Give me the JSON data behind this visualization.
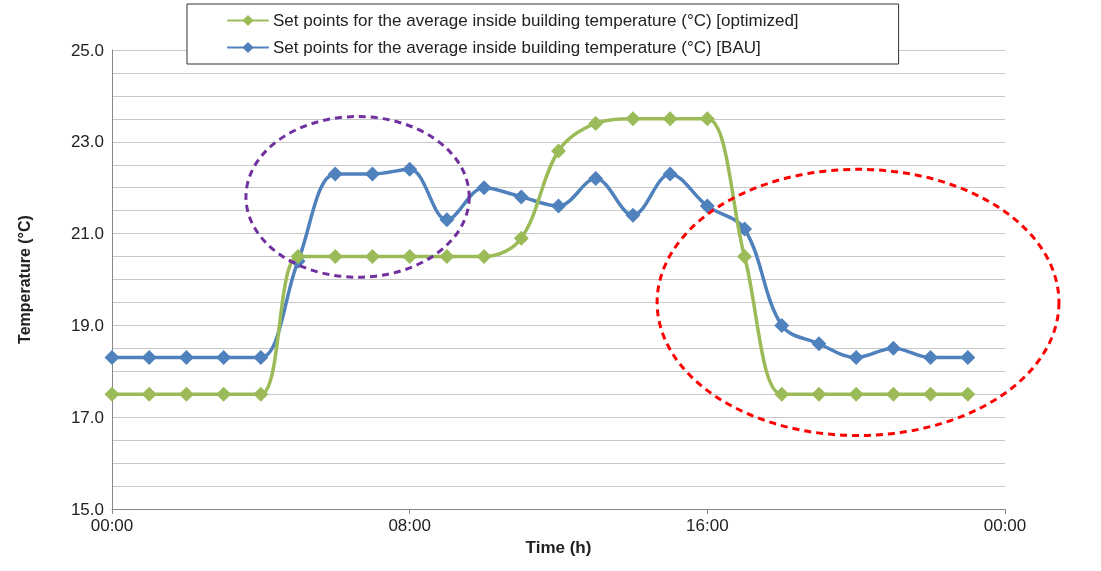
{
  "chart_data": {
    "type": "line",
    "xlabel": "Time (h)",
    "ylabel": "Temperature (°C)",
    "x": [
      0,
      1,
      2,
      3,
      4,
      5,
      6,
      7,
      8,
      9,
      10,
      11,
      12,
      13,
      14,
      15,
      16,
      17,
      18,
      19,
      20,
      21,
      22,
      23
    ],
    "xlim": [
      0,
      24
    ],
    "xticks": [
      {
        "value": 0,
        "label": "00:00"
      },
      {
        "value": 8,
        "label": "08:00"
      },
      {
        "value": 16,
        "label": "16:00"
      },
      {
        "value": 24,
        "label": "00:00"
      }
    ],
    "ylim": [
      15,
      25
    ],
    "yticks": [
      {
        "value": 15,
        "label": "15.0"
      },
      {
        "value": 15.5,
        "label": null
      },
      {
        "value": 16,
        "label": null
      },
      {
        "value": 16.5,
        "label": null
      },
      {
        "value": 17,
        "label": "17.0"
      },
      {
        "value": 17.5,
        "label": null
      },
      {
        "value": 18,
        "label": null
      },
      {
        "value": 18.5,
        "label": null
      },
      {
        "value": 19,
        "label": "19.0"
      },
      {
        "value": 19.5,
        "label": null
      },
      {
        "value": 20,
        "label": null
      },
      {
        "value": 20.5,
        "label": null
      },
      {
        "value": 21,
        "label": "21.0"
      },
      {
        "value": 21.5,
        "label": null
      },
      {
        "value": 22,
        "label": null
      },
      {
        "value": 22.5,
        "label": null
      },
      {
        "value": 23,
        "label": "23.0"
      },
      {
        "value": 23.5,
        "label": null
      },
      {
        "value": 24,
        "label": null
      },
      {
        "value": 24.5,
        "label": null
      },
      {
        "value": 25,
        "label": "25.0"
      }
    ],
    "grid": "y",
    "legend": "top",
    "marker": "diamond",
    "line_style": "solid",
    "series": [
      {
        "name": "Set points for the average inside building temperature (°C) [optimized]",
        "color": "#9bbb59",
        "values": [
          17.5,
          17.5,
          17.5,
          17.5,
          17.5,
          20.5,
          20.5,
          20.5,
          20.5,
          20.5,
          20.5,
          20.9,
          22.8,
          23.4,
          23.5,
          23.5,
          23.5,
          20.5,
          17.5,
          17.5,
          17.5,
          17.5,
          17.5,
          17.5
        ]
      },
      {
        "name": "Set points for the average inside building temperature (°C) [BAU]",
        "color": "#4f81bd",
        "values": [
          18.3,
          18.3,
          18.3,
          18.3,
          18.3,
          20.4,
          22.3,
          22.3,
          22.4,
          21.3,
          22.0,
          21.8,
          21.6,
          22.2,
          21.4,
          22.3,
          21.6,
          21.1,
          19.0,
          18.6,
          18.3,
          18.5,
          18.3,
          18.3
        ]
      }
    ]
  }
}
